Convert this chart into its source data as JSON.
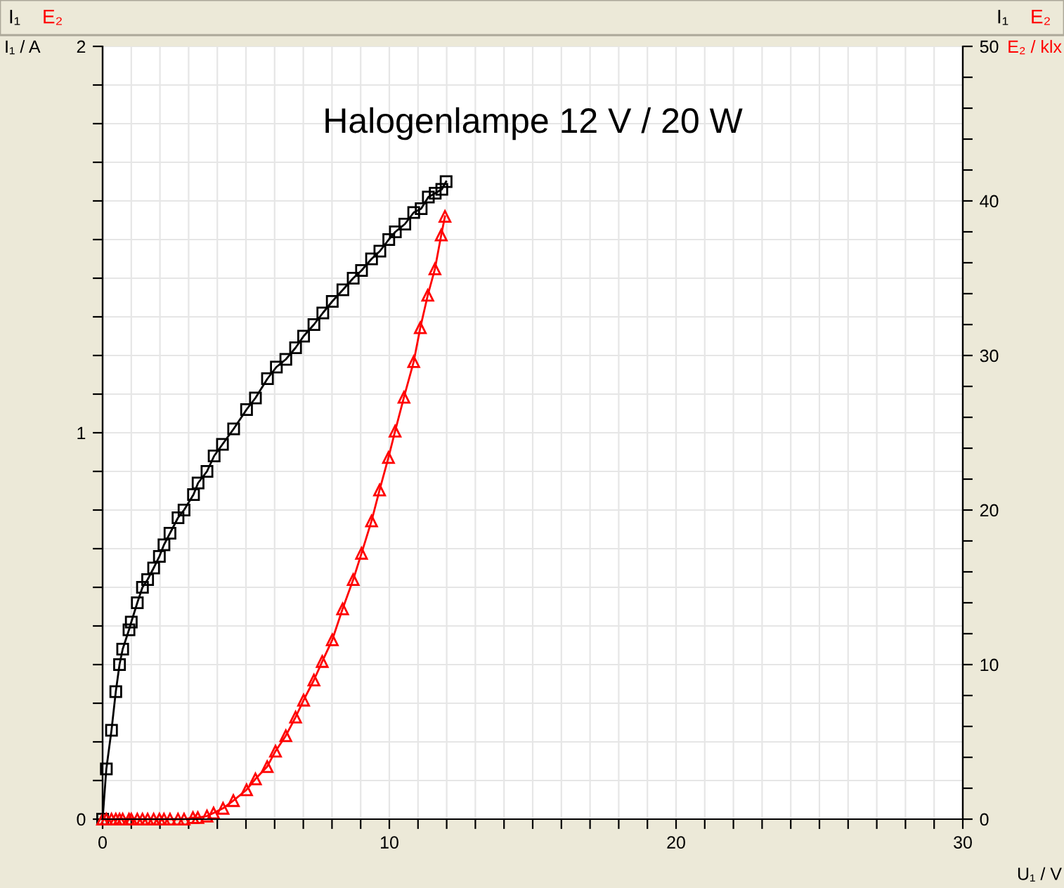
{
  "chart_data": {
    "type": "line",
    "title": "Halogenlampe 12 V / 20 W",
    "xlabel": "U₁ / V",
    "ylabel": "I₁ / A",
    "y2label": "E₂ / klx",
    "xlim": [
      0,
      30
    ],
    "ylim": [
      0,
      2
    ],
    "y2lim": [
      0,
      50
    ],
    "xticks": [
      0,
      {
        "value": 1,
        "label": null
      },
      {
        "value": 2,
        "label": null
      },
      {
        "value": 3,
        "label": null
      },
      {
        "value": 4,
        "label": null
      },
      {
        "value": 5,
        "label": null
      },
      {
        "value": 6,
        "label": null
      },
      {
        "value": 7,
        "label": null
      },
      {
        "value": 8,
        "label": null
      },
      {
        "value": 9,
        "label": null
      },
      10,
      {
        "value": 11,
        "label": null
      },
      {
        "value": 12,
        "label": null
      },
      {
        "value": 13,
        "label": null
      },
      {
        "value": 14,
        "label": null
      },
      {
        "value": 15,
        "label": null
      },
      {
        "value": 16,
        "label": null
      },
      {
        "value": 17,
        "label": null
      },
      {
        "value": 18,
        "label": null
      },
      {
        "value": 19,
        "label": null
      },
      20,
      {
        "value": 21,
        "label": null
      },
      {
        "value": 22,
        "label": null
      },
      {
        "value": 23,
        "label": null
      },
      {
        "value": 24,
        "label": null
      },
      {
        "value": 25,
        "label": null
      },
      {
        "value": 26,
        "label": null
      },
      {
        "value": 27,
        "label": null
      },
      {
        "value": 28,
        "label": null
      },
      {
        "value": 29,
        "label": null
      },
      30
    ],
    "yticks": [
      0,
      {
        "value": 0.1,
        "label": null
      },
      {
        "value": 0.2,
        "label": null
      },
      {
        "value": 0.3,
        "label": null
      },
      {
        "value": 0.4,
        "label": null
      },
      {
        "value": 0.5,
        "label": null
      },
      {
        "value": 0.6,
        "label": null
      },
      {
        "value": 0.7,
        "label": null
      },
      {
        "value": 0.8,
        "label": null
      },
      {
        "value": 0.9,
        "label": null
      },
      1,
      {
        "value": 1.1,
        "label": null
      },
      {
        "value": 1.2,
        "label": null
      },
      {
        "value": 1.3,
        "label": null
      },
      {
        "value": 1.4,
        "label": null
      },
      {
        "value": 1.5,
        "label": null
      },
      {
        "value": 1.6,
        "label": null
      },
      {
        "value": 1.7,
        "label": null
      },
      {
        "value": 1.8,
        "label": null
      },
      {
        "value": 1.9,
        "label": null
      },
      2
    ],
    "y2ticks": [
      0,
      {
        "value": 2,
        "label": null
      },
      {
        "value": 4,
        "label": null
      },
      {
        "value": 6,
        "label": null
      },
      {
        "value": 8,
        "label": null
      },
      10,
      {
        "value": 12,
        "label": null
      },
      {
        "value": 14,
        "label": null
      },
      {
        "value": 16,
        "label": null
      },
      {
        "value": 18,
        "label": null
      },
      20,
      {
        "value": 22,
        "label": null
      },
      {
        "value": 24,
        "label": null
      },
      {
        "value": 26,
        "label": null
      },
      {
        "value": 28,
        "label": null
      },
      30,
      {
        "value": 32,
        "label": null
      },
      {
        "value": 34,
        "label": null
      },
      {
        "value": 36,
        "label": null
      },
      {
        "value": 38,
        "label": null
      },
      40,
      {
        "value": 42,
        "label": null
      },
      {
        "value": 44,
        "label": null
      },
      {
        "value": 46,
        "label": null
      },
      {
        "value": 48,
        "label": null
      },
      50
    ],
    "grid": true,
    "legend": "top",
    "series": [
      {
        "name": "I₁",
        "color": "#000000",
        "marker": "square",
        "x": [
          0,
          0.13,
          0.31,
          0.46,
          0.59,
          0.7,
          0.92,
          1.0,
          1.21,
          1.39,
          1.57,
          1.78,
          1.98,
          2.14,
          2.35,
          2.63,
          2.84,
          3.17,
          3.33,
          3.64,
          3.89,
          4.18,
          4.57,
          5.02,
          5.33,
          5.75,
          6.06,
          6.39,
          6.73,
          7.01,
          7.37,
          7.68,
          8.01,
          8.38,
          8.74,
          9.03,
          9.38,
          9.67,
          9.98,
          10.21,
          10.54,
          10.85,
          11.11,
          11.36,
          11.6,
          11.83,
          11.98
        ],
        "values": [
          0,
          0.13,
          0.23,
          0.33,
          0.4,
          0.44,
          0.49,
          0.51,
          0.56,
          0.6,
          0.62,
          0.65,
          0.68,
          0.71,
          0.74,
          0.78,
          0.8,
          0.84,
          0.87,
          0.9,
          0.94,
          0.97,
          1.01,
          1.06,
          1.09,
          1.14,
          1.17,
          1.19,
          1.22,
          1.25,
          1.28,
          1.31,
          1.34,
          1.37,
          1.4,
          1.42,
          1.45,
          1.47,
          1.5,
          1.52,
          1.54,
          1.57,
          1.58,
          1.61,
          1.62,
          1.63,
          1.65
        ]
      },
      {
        "name": "E₂",
        "color": "#ff0000",
        "marker": "triangle",
        "axis": "y2",
        "x": [
          0,
          0.13,
          0.31,
          0.46,
          0.59,
          0.7,
          0.92,
          1.0,
          1.21,
          1.39,
          1.57,
          1.78,
          1.98,
          2.14,
          2.35,
          2.63,
          2.84,
          3.15,
          3.32,
          3.64,
          3.87,
          4.2,
          4.56,
          5.02,
          5.33,
          5.74,
          6.03,
          6.39,
          6.73,
          7.01,
          7.37,
          7.66,
          8.01,
          8.37,
          8.74,
          9.03,
          9.38,
          9.66,
          9.97,
          10.2,
          10.51,
          10.85,
          11.08,
          11.34,
          11.59,
          11.81,
          11.94
        ],
        "values": [
          0,
          0,
          0,
          0,
          0,
          0,
          0,
          0,
          0,
          0,
          0,
          0,
          0,
          0,
          0,
          0,
          0,
          0.1,
          0.1,
          0.2,
          0.4,
          0.7,
          1.2,
          1.9,
          2.6,
          3.4,
          4.4,
          5.4,
          6.6,
          7.7,
          9.0,
          10.2,
          11.6,
          13.6,
          15.5,
          17.2,
          19.3,
          21.3,
          23.4,
          25.1,
          27.3,
          29.6,
          31.8,
          33.9,
          35.6,
          37.8,
          39.0
        ]
      }
    ]
  }
}
